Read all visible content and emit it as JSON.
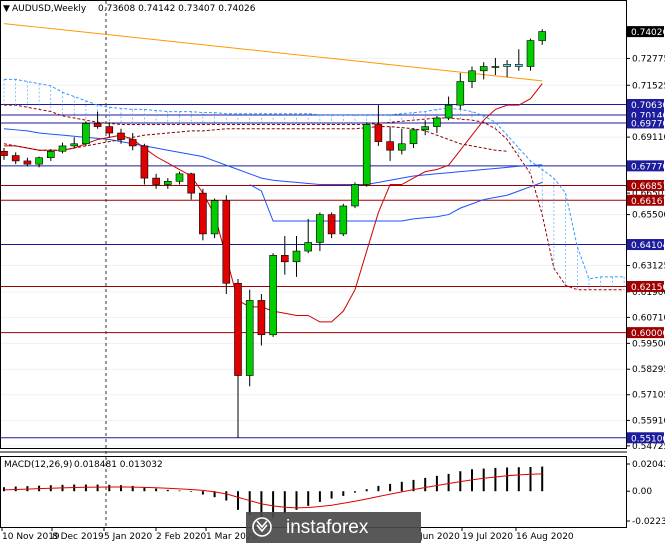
{
  "header": {
    "symbol_label": "AUDUSD,Weekly",
    "ohlc_values": "0.73608 0.74142 0.73407 0.74026"
  },
  "macd": {
    "label": "MACD(12,26,9)",
    "values": "0.018481 0.013032"
  },
  "watermark": {
    "text": "instaforex"
  },
  "colors": {
    "bull": "#00cc00",
    "bear": "#e00000",
    "kijun": "#d00000",
    "ma_blue": "#1a53ff",
    "ma_orange": "#ff9900",
    "cloud_dash": "#3399ff",
    "chikou": "#800000",
    "level_blue": "#1c1c9c",
    "level_red": "#a00000",
    "signal": "#e00000"
  },
  "chart_data": {
    "type": "candlestick",
    "price_ticks": [
      "0.72775",
      "0.71525",
      "0.69110",
      "0.66501",
      "0.65500",
      "0.63125",
      "0.61900",
      "0.60710",
      "0.59500",
      "0.58295",
      "0.57105",
      "0.55910",
      "0.54725"
    ],
    "price_labels_highlight": [
      "0.74026",
      "0.70630",
      "0.70140",
      "0.69770",
      "0.67770",
      "0.66857",
      "0.66167",
      "0.64104",
      "0.62150",
      "0.60000",
      "0.55100"
    ],
    "macd_ticks": [
      "0.020425",
      "0.00",
      "-0.022348"
    ],
    "x_labels": [
      "10 Nov 2019",
      "8 Dec 2019",
      "5 Jan 2020",
      "2 Feb 2020",
      "1 Mar 2020",
      "",
      "Jun 2020",
      "19 Jul 2020",
      "16 Aug 2020"
    ],
    "levels": [
      {
        "price": 0.7063,
        "color": "level_blue"
      },
      {
        "price": 0.7014,
        "color": "level_blue"
      },
      {
        "price": 0.6977,
        "color": "level_blue"
      },
      {
        "price": 0.6777,
        "color": "level_blue"
      },
      {
        "price": 0.66857,
        "color": "level_red"
      },
      {
        "price": 0.66167,
        "color": "level_red"
      },
      {
        "price": 0.64104,
        "color": "level_blue"
      },
      {
        "price": 0.6215,
        "color": "level_red"
      },
      {
        "price": 0.6,
        "color": "level_red"
      },
      {
        "price": 0.551,
        "color": "level_blue"
      }
    ],
    "candles": [
      [
        0.6845,
        0.686,
        0.6805,
        0.6825
      ],
      [
        0.6825,
        0.684,
        0.6785,
        0.68
      ],
      [
        0.68,
        0.6815,
        0.6775,
        0.6785
      ],
      [
        0.6785,
        0.682,
        0.677,
        0.6815
      ],
      [
        0.6815,
        0.6855,
        0.68,
        0.6845
      ],
      [
        0.6845,
        0.6885,
        0.6835,
        0.687
      ],
      [
        0.687,
        0.691,
        0.686,
        0.688
      ],
      [
        0.688,
        0.6985,
        0.687,
        0.6975
      ],
      [
        0.6975,
        0.703,
        0.695,
        0.696
      ],
      [
        0.696,
        0.698,
        0.691,
        0.693
      ],
      [
        0.693,
        0.695,
        0.688,
        0.69
      ],
      [
        0.69,
        0.693,
        0.685,
        0.687
      ],
      [
        0.687,
        0.688,
        0.669,
        0.672
      ],
      [
        0.672,
        0.674,
        0.667,
        0.669
      ],
      [
        0.669,
        0.672,
        0.667,
        0.6705
      ],
      [
        0.6705,
        0.675,
        0.669,
        0.674
      ],
      [
        0.674,
        0.6745,
        0.662,
        0.665
      ],
      [
        0.665,
        0.667,
        0.643,
        0.646
      ],
      [
        0.646,
        0.6625,
        0.644,
        0.6615
      ],
      [
        0.6615,
        0.664,
        0.618,
        0.623
      ],
      [
        0.623,
        0.625,
        0.551,
        0.58
      ],
      [
        0.58,
        0.62,
        0.575,
        0.615
      ],
      [
        0.615,
        0.618,
        0.594,
        0.599
      ],
      [
        0.599,
        0.637,
        0.598,
        0.636
      ],
      [
        0.636,
        0.645,
        0.627,
        0.633
      ],
      [
        0.633,
        0.645,
        0.626,
        0.638
      ],
      [
        0.638,
        0.653,
        0.637,
        0.642
      ],
      [
        0.642,
        0.656,
        0.638,
        0.655
      ],
      [
        0.655,
        0.656,
        0.644,
        0.646
      ],
      [
        0.646,
        0.66,
        0.645,
        0.659
      ],
      [
        0.659,
        0.67,
        0.658,
        0.669
      ],
      [
        0.669,
        0.698,
        0.668,
        0.697
      ],
      [
        0.697,
        0.706,
        0.687,
        0.689
      ],
      [
        0.689,
        0.696,
        0.68,
        0.685
      ],
      [
        0.685,
        0.695,
        0.683,
        0.688
      ],
      [
        0.688,
        0.695,
        0.686,
        0.6945
      ],
      [
        0.6945,
        0.699,
        0.692,
        0.696
      ],
      [
        0.696,
        0.701,
        0.693,
        0.7
      ],
      [
        0.7,
        0.71,
        0.699,
        0.706
      ],
      [
        0.706,
        0.721,
        0.704,
        0.717
      ],
      [
        0.717,
        0.724,
        0.714,
        0.722
      ],
      [
        0.722,
        0.726,
        0.718,
        0.724
      ],
      [
        0.724,
        0.728,
        0.72,
        0.724
      ],
      [
        0.724,
        0.727,
        0.719,
        0.725
      ],
      [
        0.725,
        0.732,
        0.722,
        0.724
      ],
      [
        0.724,
        0.737,
        0.722,
        0.7361
      ],
      [
        0.7361,
        0.7414,
        0.7341,
        0.7403
      ]
    ],
    "cyan_candle_indices": [
      43,
      44
    ],
    "macd_hist": [
      0.003,
      0.0035,
      0.0038,
      0.0042,
      0.0045,
      0.0048,
      0.005,
      0.005,
      0.005,
      0.0048,
      0.0045,
      0.004,
      0.003,
      0.002,
      0.001,
      0.0005,
      -0.0005,
      -0.0025,
      -0.0045,
      -0.007,
      -0.014,
      -0.018,
      -0.021,
      -0.02,
      -0.017,
      -0.014,
      -0.011,
      -0.008,
      -0.0055,
      -0.0035,
      -0.001,
      0.0015,
      0.004,
      0.0055,
      0.007,
      0.0085,
      0.01,
      0.0115,
      0.013,
      0.015,
      0.0165,
      0.017,
      0.0175,
      0.0178,
      0.018,
      0.0182,
      0.0185
    ],
    "macd_signal": [
      0.001,
      0.0013,
      0.0016,
      0.0019,
      0.0022,
      0.0025,
      0.0028,
      0.003,
      0.0031,
      0.0032,
      0.0032,
      0.0031,
      0.0029,
      0.0026,
      0.0022,
      0.0018,
      0.0013,
      0.0006,
      -0.0005,
      -0.002,
      -0.0045,
      -0.007,
      -0.0095,
      -0.011,
      -0.012,
      -0.0125,
      -0.0122,
      -0.0115,
      -0.0105,
      -0.009,
      -0.0075,
      -0.0058,
      -0.004,
      -0.0022,
      -0.0005,
      0.0012,
      0.0028,
      0.0043,
      0.0058,
      0.0072,
      0.0085,
      0.0097,
      0.0107,
      0.0116,
      0.0123,
      0.0127,
      0.013
    ]
  }
}
